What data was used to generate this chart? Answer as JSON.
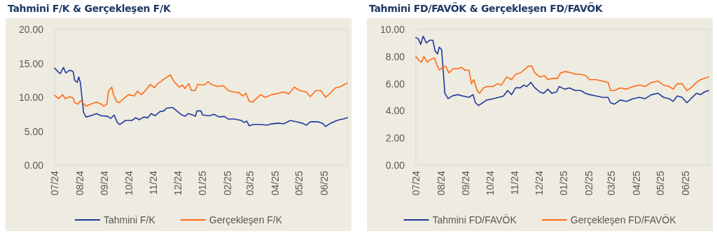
{
  "chart_data": [
    {
      "type": "line",
      "title": "Tahmini F/K & Gerçekleşen F/K",
      "legend": "bottom",
      "grid": false,
      "marker": "none",
      "line_style": "solid",
      "xlim": [
        "2024-07-01",
        "2025-06-30"
      ],
      "xticks": [
        {
          "value": "2024-07-01",
          "label": "07/24"
        },
        {
          "value": "2024-08-01",
          "label": "08/24"
        },
        {
          "value": "2024-09-01",
          "label": "09/24"
        },
        {
          "value": "2024-10-01",
          "label": "10/24"
        },
        {
          "value": "2024-11-01",
          "label": "11/24"
        },
        {
          "value": "2024-12-01",
          "label": "12/24"
        },
        {
          "value": "2025-01-01",
          "label": "01/25"
        },
        {
          "value": "2025-02-01",
          "label": "02/25"
        },
        {
          "value": "2025-03-01",
          "label": "03/25"
        },
        {
          "value": "2025-04-01",
          "label": "04/25"
        },
        {
          "value": "2025-05-01",
          "label": "05/25"
        },
        {
          "value": "2025-06-01",
          "label": "06/25"
        }
      ],
      "ylim": [
        0,
        20
      ],
      "yticks": [
        {
          "value": 0,
          "label": "0.00"
        },
        {
          "value": 5,
          "label": "5.00"
        },
        {
          "value": 10,
          "label": "10.00"
        },
        {
          "value": 15,
          "label": "15.00"
        },
        {
          "value": 20,
          "label": "20.00"
        }
      ],
      "series": [
        {
          "name": "Tahmini F/K",
          "color": "#1f3a9e",
          "x": [
            "2024-07-01",
            "2024-07-05",
            "2024-07-08",
            "2024-07-12",
            "2024-07-15",
            "2024-07-20",
            "2024-07-24",
            "2024-07-26",
            "2024-07-29",
            "2024-07-31",
            "2024-08-02",
            "2024-08-06",
            "2024-08-09",
            "2024-08-15",
            "2024-08-22",
            "2024-08-28",
            "2024-09-05",
            "2024-09-09",
            "2024-09-13",
            "2024-09-17",
            "2024-09-20",
            "2024-09-27",
            "2024-10-05",
            "2024-10-10",
            "2024-10-14",
            "2024-10-20",
            "2024-10-25",
            "2024-10-29",
            "2024-11-03",
            "2024-11-09",
            "2024-11-14",
            "2024-11-17",
            "2024-11-25",
            "2024-11-30",
            "2024-12-05",
            "2024-12-10",
            "2024-12-14",
            "2024-12-20",
            "2024-12-23",
            "2024-12-25",
            "2024-12-30",
            "2025-01-01",
            "2025-01-10",
            "2025-01-15",
            "2025-01-22",
            "2025-01-28",
            "2025-02-02",
            "2025-02-10",
            "2025-02-18",
            "2025-02-22",
            "2025-02-25",
            "2025-02-28",
            "2025-03-05",
            "2025-03-15",
            "2025-03-22",
            "2025-03-28",
            "2025-04-05",
            "2025-04-12",
            "2025-04-20",
            "2025-04-28",
            "2025-05-05",
            "2025-05-10",
            "2025-05-15",
            "2025-05-25",
            "2025-05-31",
            "2025-06-03",
            "2025-06-08",
            "2025-06-15",
            "2025-06-20",
            "2025-06-25",
            "2025-06-30"
          ],
          "values": [
            14.3,
            13.8,
            13.5,
            14.4,
            13.6,
            14.0,
            13.8,
            12.5,
            12.2,
            13.0,
            12.2,
            7.8,
            7.1,
            7.3,
            7.6,
            7.3,
            7.2,
            6.9,
            7.4,
            6.3,
            6.0,
            6.6,
            6.6,
            7.0,
            6.7,
            7.1,
            7.0,
            7.6,
            7.3,
            7.9,
            8.0,
            8.4,
            8.5,
            8.0,
            7.5,
            7.2,
            7.6,
            7.4,
            7.2,
            8.0,
            8.0,
            7.4,
            7.3,
            7.5,
            7.1,
            7.2,
            6.8,
            6.8,
            6.6,
            6.3,
            6.5,
            5.8,
            6.0,
            6.0,
            5.9,
            6.1,
            6.2,
            6.1,
            6.6,
            6.4,
            6.2,
            5.9,
            6.4,
            6.4,
            6.1,
            5.7,
            6.1,
            6.5,
            6.7,
            6.8,
            7.0
          ]
        },
        {
          "name": "Gerçekleşen F/K",
          "color": "#ff6a13",
          "x": [
            "2024-07-01",
            "2024-07-06",
            "2024-07-11",
            "2024-07-14",
            "2024-07-20",
            "2024-07-24",
            "2024-07-26",
            "2024-07-30",
            "2024-08-02",
            "2024-08-05",
            "2024-08-09",
            "2024-08-15",
            "2024-08-22",
            "2024-08-28",
            "2024-08-31",
            "2024-09-04",
            "2024-09-06",
            "2024-09-10",
            "2024-09-12",
            "2024-09-16",
            "2024-09-19",
            "2024-09-25",
            "2024-10-01",
            "2024-10-08",
            "2024-10-12",
            "2024-10-17",
            "2024-10-22",
            "2024-10-28",
            "2024-11-02",
            "2024-11-06",
            "2024-11-10",
            "2024-11-14",
            "2024-11-18",
            "2024-11-22",
            "2024-11-26",
            "2024-12-03",
            "2024-12-07",
            "2024-12-10",
            "2024-12-15",
            "2024-12-18",
            "2024-12-23",
            "2024-12-26",
            "2025-01-03",
            "2025-01-08",
            "2025-01-12",
            "2025-01-20",
            "2025-01-27",
            "2025-02-02",
            "2025-02-08",
            "2025-02-15",
            "2025-02-20",
            "2025-02-24",
            "2025-02-28",
            "2025-03-04",
            "2025-03-10",
            "2025-03-14",
            "2025-03-20",
            "2025-03-28",
            "2025-04-05",
            "2025-04-12",
            "2025-04-18",
            "2025-04-25",
            "2025-05-02",
            "2025-05-10",
            "2025-05-15",
            "2025-05-22",
            "2025-05-28",
            "2025-06-03",
            "2025-06-08",
            "2025-06-15",
            "2025-06-20",
            "2025-06-25",
            "2025-06-30"
          ],
          "values": [
            10.3,
            9.8,
            10.4,
            9.8,
            10.1,
            9.9,
            9.2,
            9.0,
            9.5,
            9.2,
            8.7,
            9.0,
            9.3,
            9.0,
            8.7,
            9.0,
            10.9,
            11.5,
            10.5,
            9.4,
            9.2,
            9.8,
            10.4,
            10.2,
            10.9,
            10.4,
            11.0,
            11.9,
            11.4,
            12.0,
            12.3,
            12.7,
            13.0,
            13.3,
            12.4,
            11.5,
            11.8,
            11.3,
            12.0,
            11.0,
            11.0,
            11.9,
            11.8,
            12.3,
            11.9,
            11.6,
            11.7,
            11.0,
            10.8,
            10.7,
            10.2,
            10.6,
            9.4,
            9.3,
            9.9,
            10.4,
            10.0,
            10.4,
            10.6,
            10.8,
            10.5,
            11.5,
            11.0,
            10.8,
            10.1,
            11.0,
            11.0,
            10.0,
            10.5,
            11.4,
            11.5,
            11.8,
            12.1
          ]
        }
      ]
    },
    {
      "type": "line",
      "title": "Tahmini FD/FAVÖK & Gerçekleşen FD/FAVÖK",
      "legend": "bottom",
      "grid": false,
      "marker": "none",
      "line_style": "solid",
      "xlim": [
        "2024-07-01",
        "2025-06-30"
      ],
      "xticks": [
        {
          "value": "2024-07-01",
          "label": "07/24"
        },
        {
          "value": "2024-08-01",
          "label": "08/24"
        },
        {
          "value": "2024-09-01",
          "label": "09/24"
        },
        {
          "value": "2024-10-01",
          "label": "10/24"
        },
        {
          "value": "2024-11-01",
          "label": "11/24"
        },
        {
          "value": "2024-12-01",
          "label": "12/24"
        },
        {
          "value": "2025-01-01",
          "label": "01/25"
        },
        {
          "value": "2025-02-01",
          "label": "02/25"
        },
        {
          "value": "2025-03-01",
          "label": "03/25"
        },
        {
          "value": "2025-04-01",
          "label": "04/25"
        },
        {
          "value": "2025-05-01",
          "label": "05/25"
        },
        {
          "value": "2025-06-01",
          "label": "06/25"
        }
      ],
      "ylim": [
        0,
        10
      ],
      "yticks": [
        {
          "value": 0,
          "label": "0.00"
        },
        {
          "value": 2,
          "label": "2.00"
        },
        {
          "value": 4,
          "label": "4.00"
        },
        {
          "value": 6,
          "label": "6.00"
        },
        {
          "value": 8,
          "label": "8.00"
        },
        {
          "value": 10,
          "label": "10.00"
        }
      ],
      "series": [
        {
          "name": "Tahmini FD/FAVÖK",
          "color": "#1f3a9e",
          "x": [
            "2024-07-01",
            "2024-07-04",
            "2024-07-07",
            "2024-07-10",
            "2024-07-14",
            "2024-07-18",
            "2024-07-22",
            "2024-07-25",
            "2024-07-28",
            "2024-07-30",
            "2024-08-02",
            "2024-08-06",
            "2024-08-10",
            "2024-08-15",
            "2024-08-22",
            "2024-08-28",
            "2024-09-05",
            "2024-09-10",
            "2024-09-13",
            "2024-09-17",
            "2024-09-22",
            "2024-09-27",
            "2024-10-05",
            "2024-10-12",
            "2024-10-18",
            "2024-10-23",
            "2024-10-28",
            "2024-11-02",
            "2024-11-08",
            "2024-11-12",
            "2024-11-16",
            "2024-11-21",
            "2024-11-26",
            "2024-12-02",
            "2024-12-07",
            "2024-12-12",
            "2024-12-17",
            "2024-12-23",
            "2024-12-26",
            "2025-01-02",
            "2025-01-08",
            "2025-01-15",
            "2025-01-22",
            "2025-01-28",
            "2025-02-02",
            "2025-02-10",
            "2025-02-18",
            "2025-02-25",
            "2025-02-28",
            "2025-03-05",
            "2025-03-12",
            "2025-03-20",
            "2025-03-28",
            "2025-04-05",
            "2025-04-12",
            "2025-04-20",
            "2025-04-28",
            "2025-05-05",
            "2025-05-12",
            "2025-05-17",
            "2025-05-22",
            "2025-05-28",
            "2025-06-03",
            "2025-06-08",
            "2025-06-15",
            "2025-06-20",
            "2025-06-25",
            "2025-06-30"
          ],
          "values": [
            9.4,
            9.3,
            8.9,
            9.5,
            9.0,
            9.2,
            9.2,
            8.4,
            8.2,
            8.7,
            8.5,
            5.3,
            4.9,
            5.1,
            5.2,
            5.1,
            5.0,
            5.2,
            4.6,
            4.4,
            4.6,
            4.8,
            4.9,
            5.0,
            5.1,
            5.5,
            5.2,
            5.7,
            5.7,
            5.9,
            5.8,
            6.1,
            5.7,
            5.4,
            5.3,
            5.6,
            5.3,
            5.4,
            5.8,
            5.6,
            5.7,
            5.5,
            5.5,
            5.3,
            5.2,
            5.1,
            5.0,
            5.0,
            4.6,
            4.5,
            4.8,
            4.7,
            4.9,
            5.0,
            4.9,
            5.2,
            5.3,
            5.0,
            4.9,
            4.7,
            5.1,
            5.0,
            4.6,
            4.9,
            5.3,
            5.2,
            5.4,
            5.5
          ]
        },
        {
          "name": "Gerçekleşen FD/FAVÖK",
          "color": "#ff6a13",
          "x": [
            "2024-07-01",
            "2024-07-05",
            "2024-07-08",
            "2024-07-11",
            "2024-07-15",
            "2024-07-20",
            "2024-07-24",
            "2024-07-27",
            "2024-07-30",
            "2024-08-03",
            "2024-08-07",
            "2024-08-11",
            "2024-08-16",
            "2024-08-22",
            "2024-08-27",
            "2024-08-31",
            "2024-09-05",
            "2024-09-08",
            "2024-09-11",
            "2024-09-15",
            "2024-09-18",
            "2024-09-23",
            "2024-09-28",
            "2024-10-05",
            "2024-10-10",
            "2024-10-15",
            "2024-10-22",
            "2024-10-28",
            "2024-11-02",
            "2024-11-08",
            "2024-11-12",
            "2024-11-18",
            "2024-11-22",
            "2024-11-26",
            "2024-12-02",
            "2024-12-08",
            "2024-12-12",
            "2024-12-18",
            "2024-12-24",
            "2024-12-28",
            "2025-01-03",
            "2025-01-10",
            "2025-01-15",
            "2025-01-22",
            "2025-01-28",
            "2025-02-02",
            "2025-02-10",
            "2025-02-18",
            "2025-02-25",
            "2025-02-28",
            "2025-03-05",
            "2025-03-12",
            "2025-03-20",
            "2025-03-28",
            "2025-04-05",
            "2025-04-12",
            "2025-04-20",
            "2025-04-28",
            "2025-05-05",
            "2025-05-12",
            "2025-05-17",
            "2025-05-22",
            "2025-05-28",
            "2025-06-03",
            "2025-06-08",
            "2025-06-15",
            "2025-06-20",
            "2025-06-25",
            "2025-06-30"
          ],
          "values": [
            8.0,
            7.7,
            7.6,
            8.0,
            7.6,
            7.8,
            7.9,
            7.4,
            7.0,
            7.2,
            7.3,
            6.8,
            7.1,
            7.1,
            7.2,
            7.0,
            7.0,
            6.0,
            6.3,
            5.5,
            5.3,
            5.7,
            5.8,
            5.8,
            6.0,
            5.9,
            6.5,
            6.3,
            6.7,
            6.8,
            7.0,
            7.3,
            7.3,
            6.8,
            6.5,
            6.6,
            6.3,
            6.4,
            6.4,
            6.8,
            6.9,
            6.8,
            6.7,
            6.7,
            6.6,
            6.3,
            6.3,
            6.2,
            6.1,
            5.5,
            5.5,
            5.7,
            5.6,
            5.8,
            5.9,
            5.8,
            6.1,
            6.2,
            5.9,
            5.8,
            5.6,
            6.0,
            6.0,
            5.5,
            5.7,
            6.1,
            6.3,
            6.4,
            6.5
          ]
        }
      ]
    }
  ]
}
